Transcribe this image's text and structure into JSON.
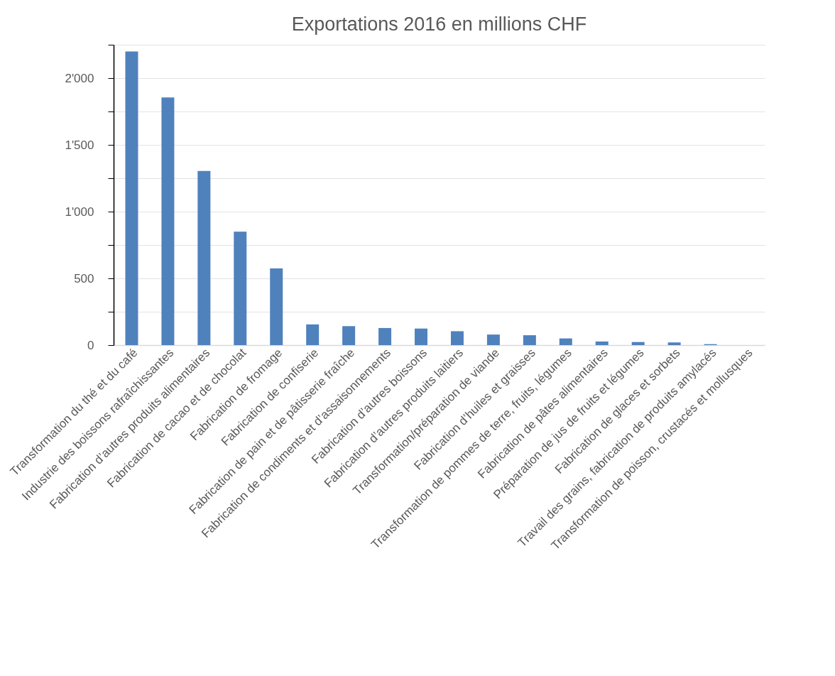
{
  "chart_data": {
    "type": "bar",
    "title": "Exportations 2016 en millions CHF",
    "categories": [
      "Transformation du thé et du café",
      "Industrie des boissons rafraîchissantes",
      "Fabrication d’autres produits alimentaires",
      "Fabrication de cacao et de chocolat",
      "Fabrication de fromage",
      "Fabrication de confiserie",
      "Fabrication de pain et de pâtisserie fraîche",
      "Fabrication de condiments et d’assaisonnements",
      "Fabrication d’autres boissons",
      "Fabrication d’autres produits laitiers",
      "Transformation/préparation de viande",
      "Fabrication d’huiles et graisses",
      "Transformation de pommes de terre, fruits, légumes",
      "Fabrication de pâtes alimentaires",
      "Préparation de jus de fruits et légumes",
      "Fabrication de glaces et sorbets",
      "Travail des grains, fabrication de produits amylacés",
      "Transformation de poisson, crustacés et mollusques"
    ],
    "values": [
      2200,
      1855,
      1305,
      850,
      575,
      155,
      142,
      128,
      124,
      104,
      79,
      74,
      50,
      27,
      23,
      20,
      7,
      0
    ],
    "color": "#4f81bd",
    "ylim": [
      0,
      2250
    ],
    "yticks": [
      0,
      {
        "value": 250,
        "label": null
      },
      {
        "value": 500,
        "label": "500"
      },
      {
        "value": 750,
        "label": null
      },
      {
        "value": 1000,
        "label": "1'000"
      },
      {
        "value": 1250,
        "label": null
      },
      {
        "value": 1500,
        "label": "1'500"
      },
      {
        "value": 1750,
        "label": null
      },
      {
        "value": 2000,
        "label": "2'000"
      },
      {
        "value": 2250,
        "label": null
      }
    ],
    "grid": true
  }
}
